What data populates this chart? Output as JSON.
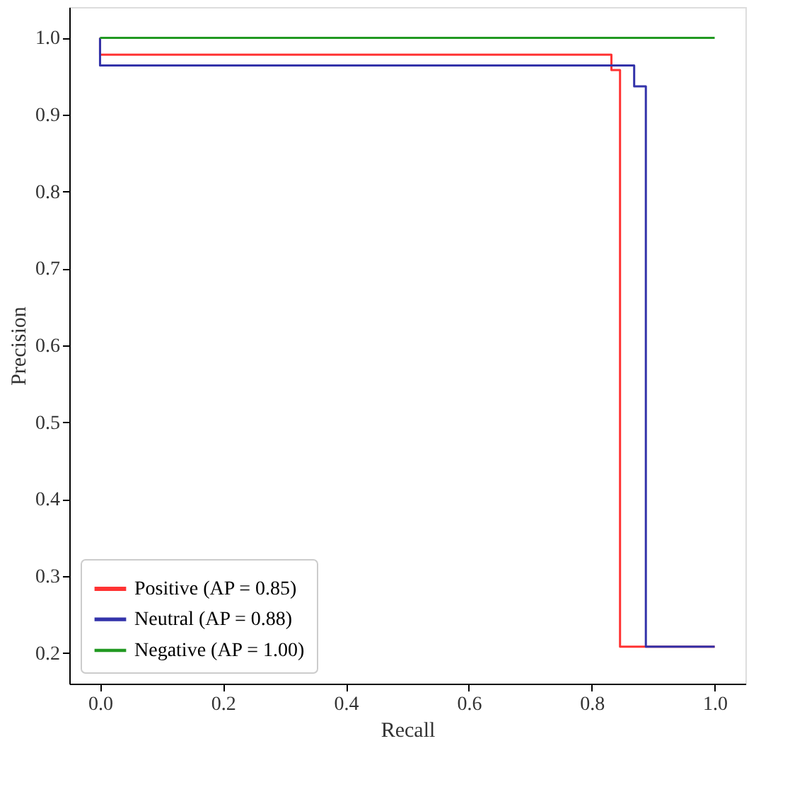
{
  "chart_data": {
    "type": "step",
    "xlabel": "Recall",
    "ylabel": "Precision",
    "xlim": [
      -0.05,
      1.05
    ],
    "ylim": [
      0.16,
      1.04
    ],
    "xticks": [
      {
        "value": 0,
        "label": "0.0"
      },
      0.2,
      0.4,
      0.6,
      0.8,
      {
        "value": 1,
        "label": "1.0"
      }
    ],
    "yticks": [
      0.2,
      0.3,
      0.4,
      0.5,
      0.6,
      0.7,
      0.8,
      0.9,
      {
        "value": 1,
        "label": "1.0"
      }
    ],
    "grid": false,
    "legend": "bottom left",
    "marker": "none",
    "line_style": "solid",
    "series": [
      {
        "name": "Positive (AP = 0.85)",
        "color": "#ff3333",
        "x": [
          0,
          0,
          0.832,
          0.846,
          1.0
        ],
        "values": [
          1.0,
          0.978,
          0.958,
          0.208,
          0.208
        ]
      },
      {
        "name": "Neutral (AP = 0.88)",
        "color": "#3333aa",
        "x": [
          0,
          0,
          0.869,
          0.888,
          1.0
        ],
        "values": [
          1.0,
          0.964,
          0.937,
          0.208,
          0.208
        ]
      },
      {
        "name": "Negative (AP = 1.00)",
        "color": "#229922",
        "x": [
          0,
          1.0
        ],
        "values": [
          1.0,
          1.0
        ]
      }
    ]
  }
}
